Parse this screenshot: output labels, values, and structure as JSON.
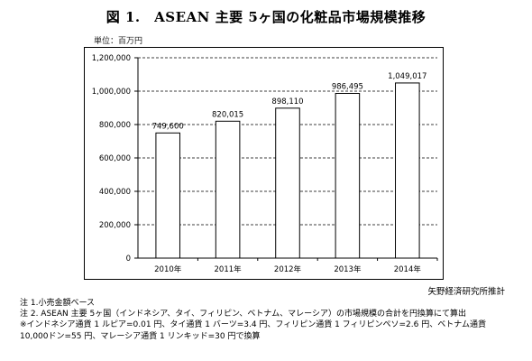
{
  "title": "図 1.　ASEAN 主要 5ヶ国の化粧品市場規模推移",
  "unit_label": "単位：百万円",
  "source": "矢野経済研究所推計",
  "notes": [
    "注 1.小売金額ベース",
    "注 2. ASEAN 主要 5ヶ国（インドネシア、タイ、フィリピン、ベトナム、マレーシア）の市場規模の合計を円換算にて算出",
    "※インドネシア通貨 1 ルピア=0.01 円、タイ通貨 1 バーツ=3.4 円、フィリピン通貨 1 フィリピンペソ=2.6 円、ベトナム通貨",
    "10,000ドン=55 円、マレーシア通貨 1 リンキッド=30 円で換算"
  ],
  "colors": {
    "bar": "#ffffff",
    "grid": "#000000"
  },
  "chart_data": {
    "type": "bar",
    "categories": [
      "2010年",
      "2011年",
      "2012年",
      "2013年",
      "2014年"
    ],
    "values": [
      749600,
      820015,
      898110,
      986495,
      1049017
    ],
    "value_labels": [
      "749,600",
      "820,015",
      "898,110",
      "986,495",
      "1,049,017"
    ],
    "ylim": [
      0,
      1200000
    ],
    "yticks": [
      0,
      200000,
      400000,
      600000,
      800000,
      1000000,
      1200000
    ],
    "ytick_labels": [
      "0",
      "200,000",
      "400,000",
      "600,000",
      "800,000",
      "1,000,000",
      "1,200,000"
    ],
    "grid": true,
    "title": "",
    "xlabel": "",
    "ylabel": ""
  }
}
